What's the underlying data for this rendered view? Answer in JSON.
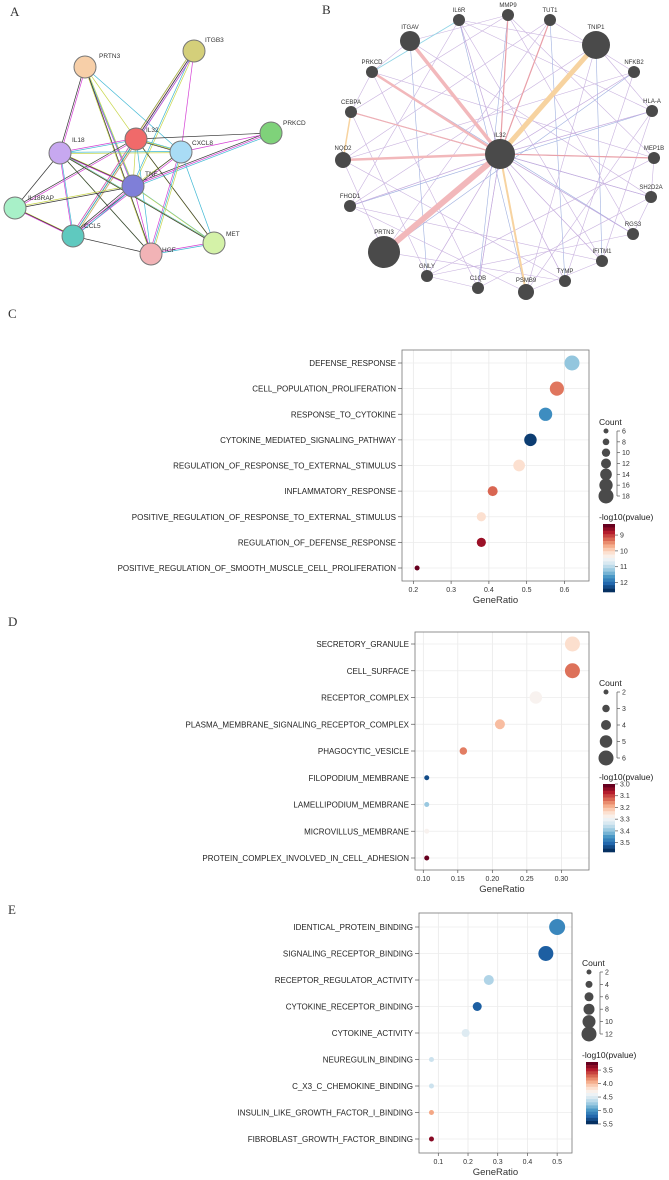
{
  "panels": {
    "a": "A",
    "b": "B",
    "c": "C",
    "d": "D",
    "e": "E"
  },
  "network_a": {
    "nodes": [
      {
        "name": "PRTN3",
        "color": "#f7cfa8"
      },
      {
        "name": "ITGB3",
        "color": "#d4cf7a"
      },
      {
        "name": "IL32",
        "color": "#f06a6a"
      },
      {
        "name": "PRKCD",
        "color": "#7fd27a"
      },
      {
        "name": "IL18",
        "color": "#c7a8f0"
      },
      {
        "name": "CXCL8",
        "color": "#a9dcf5"
      },
      {
        "name": "TNF",
        "color": "#7f7fd8"
      },
      {
        "name": "IL18RAP",
        "color": "#a8f0c8"
      },
      {
        "name": "CCL5",
        "color": "#5fc9bf"
      },
      {
        "name": "HGF",
        "color": "#f2b3b6"
      },
      {
        "name": "MET",
        "color": "#d4f2a8"
      }
    ]
  },
  "network_b": {
    "center": "IL32",
    "nodes": [
      "IL6R",
      "MMP9",
      "TUT1",
      "ITGAV",
      "TNIP1",
      "PRKCD",
      "NFKB2",
      "CEBPA",
      "HLA-A",
      "IL32",
      "NQO2",
      "MEP1B",
      "FHOD1",
      "SH2D2A",
      "PRTN3",
      "RGS3",
      "IFITM1",
      "GNLY",
      "TYMP",
      "C1QB",
      "PSMB9"
    ],
    "node_color": "#4a4a4a"
  },
  "chart_data": [
    {
      "panel": "C",
      "type": "scatter",
      "xlabel": "GeneRatio",
      "xticks": [
        0.2,
        0.3,
        0.4,
        0.5,
        0.6
      ],
      "xlim": [
        0.17,
        0.665
      ],
      "categories": [
        "DEFENSE_RESPONSE",
        "CELL_POPULATION_PROLIFERATION",
        "RESPONSE_TO_CYTOKINE",
        "CYTOKINE_MEDIATED_SIGNALING_PATHWAY",
        "REGULATION_OF_RESPONSE_TO_EXTERNAL_STIMULUS",
        "INFLAMMATORY_RESPONSE",
        "POSITIVE_REGULATION_OF_RESPONSE_TO_EXTERNAL_STIMULUS",
        "REGULATION_OF_DEFENSE_RESPONSE",
        "POSITIVE_REGULATION_OF_SMOOTH_MUSCLE_CELL_PROLIFERATION"
      ],
      "gene_ratio": [
        0.62,
        0.58,
        0.55,
        0.51,
        0.48,
        0.41,
        0.38,
        0.38,
        0.21
      ],
      "count": [
        18,
        17,
        16,
        15,
        14,
        12,
        11,
        11,
        6
      ],
      "neg_log10_pvalue": [
        11.3,
        9.3,
        11.8,
        12.5,
        10.1,
        9.2,
        10.1,
        8.6,
        8.3
      ],
      "size_legend": {
        "title": "Count",
        "values": [
          6,
          8,
          10,
          12,
          14,
          16,
          18
        ]
      },
      "color_legend": {
        "title": "-log10(pvalue)",
        "ticks": [
          9,
          10,
          11,
          12
        ],
        "range": [
          8.3,
          12.6
        ]
      },
      "grid": true
    },
    {
      "panel": "D",
      "type": "scatter",
      "xlabel": "GeneRatio",
      "xticks": [
        0.1,
        0.15,
        0.2,
        0.25,
        0.3
      ],
      "xtick_labels": [
        "0.10",
        "0.15",
        "0.20",
        "0.25",
        "0.30"
      ],
      "xlim": [
        0.088,
        0.34
      ],
      "categories": [
        "SECRETORY_GRANULE",
        "CELL_SURFACE",
        "RECEPTOR_COMPLEX",
        "PLASMA_MEMBRANE_SIGNALING_RECEPTOR_COMPLEX",
        "PHAGOCYTIC_VESICLE",
        "FILOPODIUM_MEMBRANE",
        "LAMELLIPODIUM_MEMBRANE",
        "MICROVILLUS_MEMBRANE",
        "PROTEIN_COMPLEX_INVOLVED_IN_CELL_ADHESION"
      ],
      "gene_ratio": [
        0.316,
        0.316,
        0.263,
        0.211,
        0.158,
        0.105,
        0.105,
        0.105,
        0.105
      ],
      "count": [
        6,
        6,
        5,
        4,
        3,
        2,
        2,
        2,
        2
      ],
      "neg_log10_pvalue": [
        3.24,
        3.13,
        3.28,
        3.2,
        3.14,
        3.55,
        3.4,
        3.28,
        3.0
      ],
      "size_legend": {
        "title": "Count",
        "values": [
          2,
          3,
          4,
          5,
          6
        ]
      },
      "color_legend": {
        "title": "-log10(pvalue)",
        "ticks": [
          3.0,
          3.1,
          3.2,
          3.3,
          3.4,
          3.5
        ],
        "tick_labels": [
          "3.0",
          "3.1",
          "3.2",
          "3.3",
          "3.4",
          "3.5"
        ],
        "range": [
          3.0,
          3.58
        ]
      },
      "grid": true
    },
    {
      "panel": "E",
      "type": "scatter",
      "xlabel": "GeneRatio",
      "xticks": [
        0.1,
        0.2,
        0.3,
        0.4,
        0.5
      ],
      "xlim": [
        0.035,
        0.55
      ],
      "categories": [
        "IDENTICAL_PROTEIN_BINDING",
        "SIGNALING_RECEPTOR_BINDING",
        "RECEPTOR_REGULATOR_ACTIVITY",
        "CYTOKINE_RECEPTOR_BINDING",
        "CYTOKINE_ACTIVITY",
        "NEUREGULIN_BINDING",
        "C_X3_C_CHEMOKINE_BINDING",
        "INSULIN_LIKE_GROWTH_FACTOR_I_BINDING",
        "FIBROBLAST_GROWTH_FACTOR_BINDING"
      ],
      "gene_ratio": [
        0.5,
        0.462,
        0.27,
        0.231,
        0.192,
        0.077,
        0.077,
        0.077,
        0.077
      ],
      "count": [
        13,
        12,
        7,
        6,
        5,
        2,
        2,
        2,
        2
      ],
      "neg_log10_pvalue": [
        5.1,
        5.3,
        4.7,
        5.3,
        4.5,
        4.6,
        4.6,
        3.9,
        3.3
      ],
      "size_legend": {
        "title": "Count",
        "values": [
          2,
          4,
          6,
          8,
          10,
          12
        ]
      },
      "color_legend": {
        "title": "-log10(pvalue)",
        "ticks": [
          3.5,
          4.0,
          4.5,
          5.0,
          5.5
        ],
        "tick_labels": [
          "3.5",
          "4.0",
          "4.5",
          "5.0",
          "5.5"
        ],
        "range": [
          3.2,
          5.5
        ]
      },
      "grid": true
    }
  ]
}
